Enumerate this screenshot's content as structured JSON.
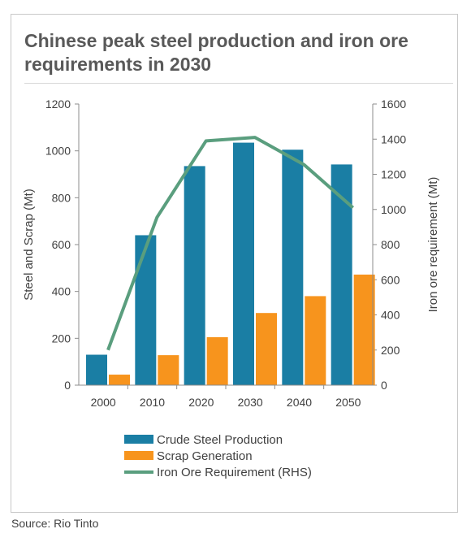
{
  "chart_data": {
    "type": "bar",
    "title": "Chinese peak steel production and iron ore requirements in 2030",
    "categories": [
      "2000",
      "2010",
      "2020",
      "2030",
      "2040",
      "2050"
    ],
    "series": [
      {
        "name": "Crude Steel Production",
        "type": "bar",
        "axis": "left",
        "color": "#1a7ea4",
        "values": [
          130,
          640,
          935,
          1035,
          1005,
          942
        ]
      },
      {
        "name": "Scrap Generation",
        "type": "bar",
        "axis": "left",
        "color": "#f7941d",
        "values": [
          45,
          128,
          205,
          308,
          380,
          472
        ]
      },
      {
        "name": "Iron Ore Requirement (RHS)",
        "type": "line",
        "axis": "right",
        "color": "#5a9e7e",
        "values": [
          200,
          955,
          1390,
          1410,
          1255,
          1010
        ]
      }
    ],
    "ylabel": "Steel and Scrap (Mt)",
    "ylim": [
      0,
      1200
    ],
    "yticks": [
      "0",
      "200",
      "400",
      "600",
      "800",
      "1000",
      "1200"
    ],
    "y2label": "Iron ore requirement (Mt)",
    "y2lim": [
      0,
      1600
    ],
    "y2ticks": [
      "0",
      "200",
      "400",
      "600",
      "800",
      "1000",
      "1200",
      "1400",
      "1600"
    ],
    "legend_position": "bottom",
    "grid": false
  },
  "source": "Source: Rio Tinto"
}
